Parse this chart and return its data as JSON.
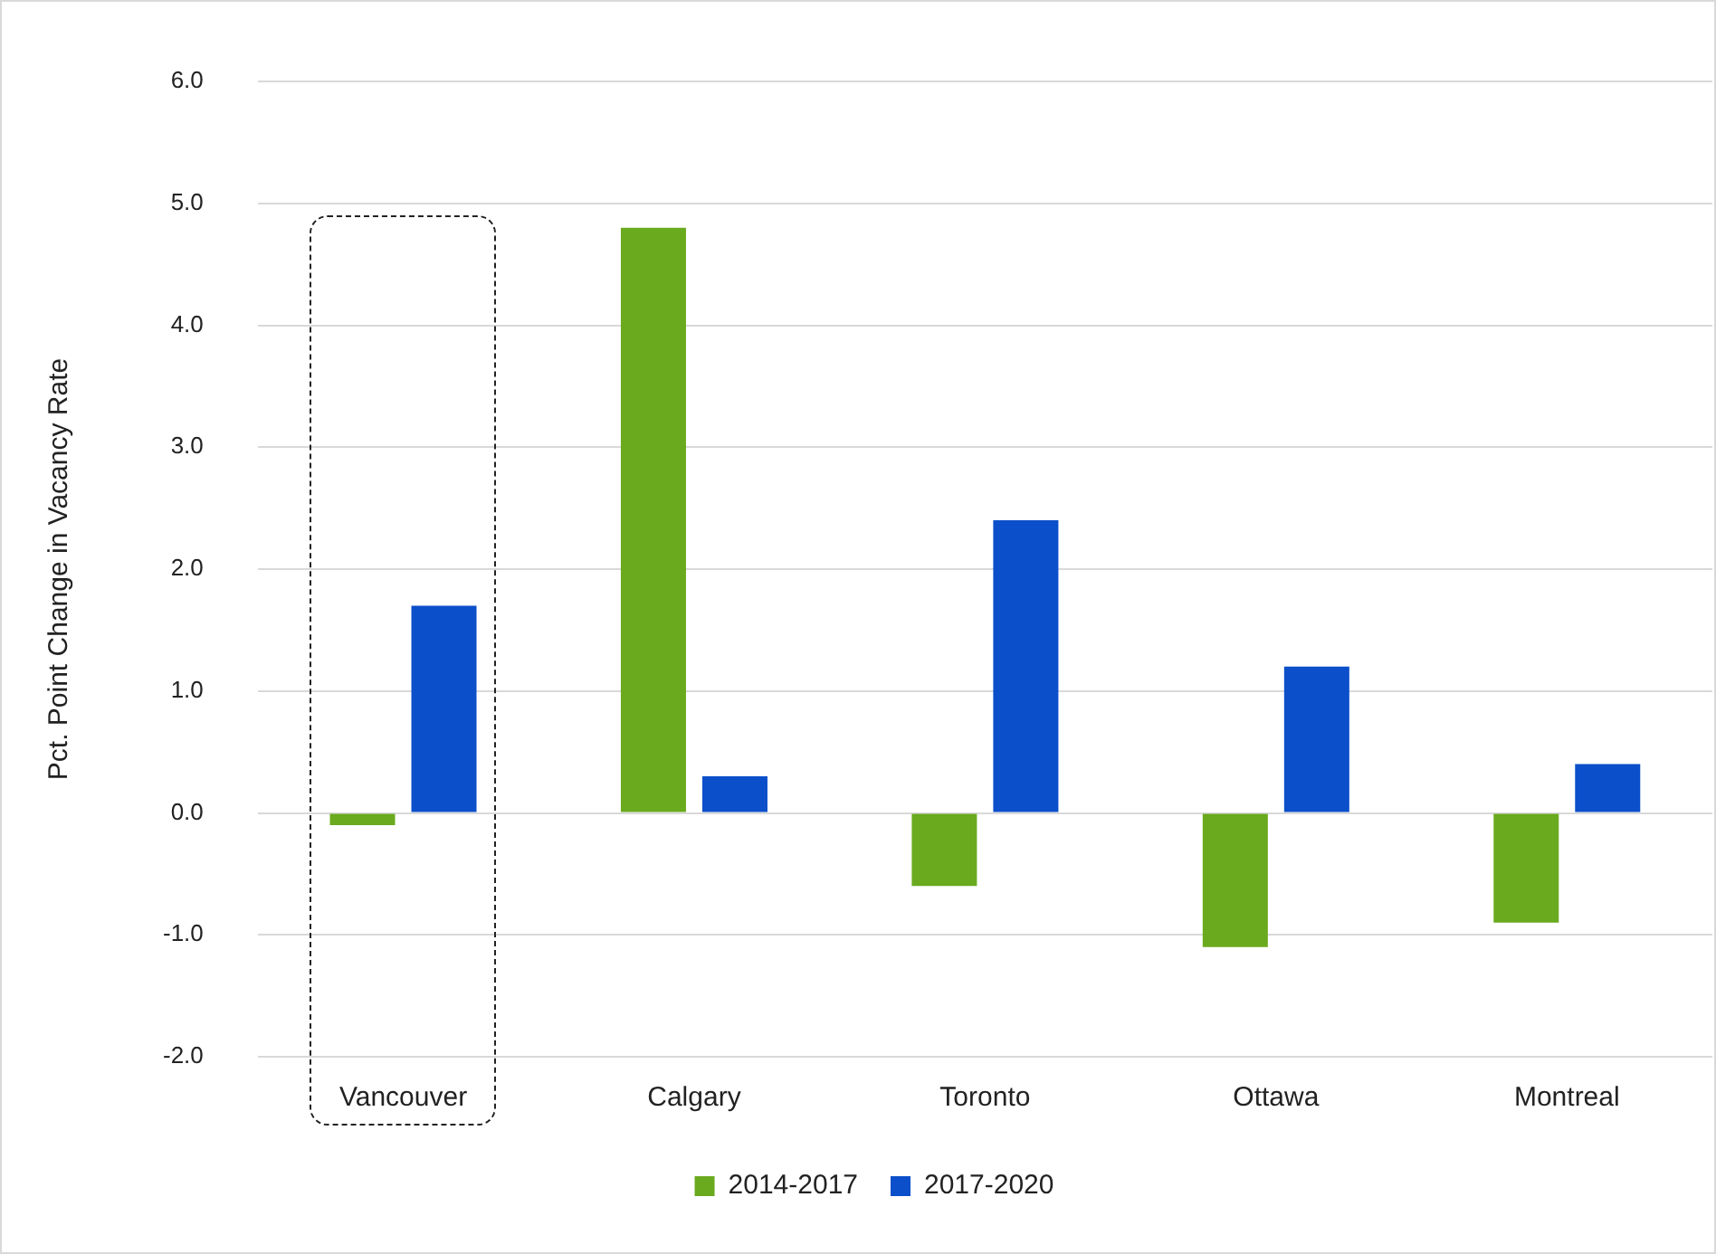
{
  "chart_data": {
    "type": "bar",
    "ylabel": "Pct. Point Change in Vacancy Rate",
    "categories": [
      "Vancouver",
      "Calgary",
      "Toronto",
      "Ottawa",
      "Montreal"
    ],
    "series": [
      {
        "name": "2014-2017",
        "color": "#6aaa1e",
        "values": [
          -0.1,
          4.8,
          -0.6,
          -1.1,
          -0.9
        ]
      },
      {
        "name": "2017-2020",
        "color": "#0b4fca",
        "values": [
          1.7,
          0.3,
          2.4,
          1.2,
          0.4
        ]
      }
    ],
    "ylim": [
      -2,
      6
    ],
    "yticks": [
      {
        "value": -2,
        "label": "-2.0"
      },
      {
        "value": -1,
        "label": "-1.0"
      },
      {
        "value": 0,
        "label": "0.0"
      },
      {
        "value": 1,
        "label": "1.0"
      },
      {
        "value": 2,
        "label": "2.0"
      },
      {
        "value": 3,
        "label": "3.0"
      },
      {
        "value": 4,
        "label": "4.0"
      },
      {
        "value": 5,
        "label": "5.0"
      },
      {
        "value": 6,
        "label": "6.0"
      }
    ],
    "grid": "y",
    "legend": "bottom"
  }
}
